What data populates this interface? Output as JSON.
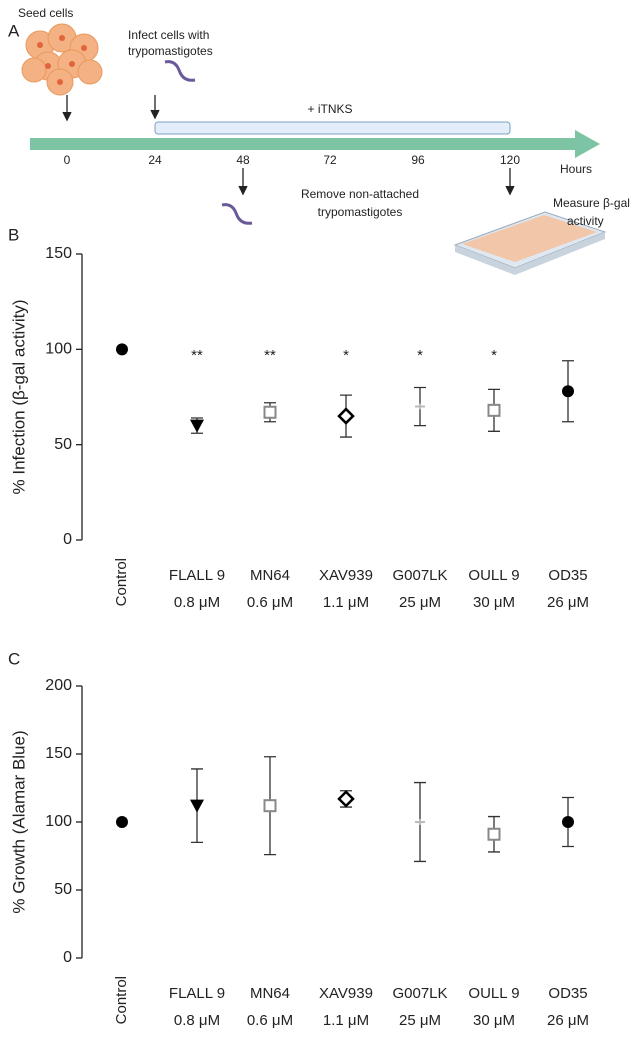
{
  "panel_a": {
    "label": "A",
    "seed_label": "Seed cells",
    "infect_label": [
      "Infect cells with",
      "trypomastigotes"
    ],
    "treatment_label": "+ iTNKS",
    "timeline_ticks": [
      "0",
      "24",
      "48",
      "72",
      "96",
      "120"
    ],
    "timeline_unit": "Hours",
    "remove_label": [
      "Remove non-attached",
      "trypomastigotes"
    ],
    "measure_label": [
      "Measure β-gal",
      "activity"
    ]
  },
  "chart_data": [
    {
      "type": "errorbar",
      "panel_label": "B",
      "y_label": "% Infection (β-gal activity)",
      "categories": [
        "Control",
        "FLALL 9",
        "MN64",
        "XAV939",
        "G007LK",
        "OULL 9",
        "OD35"
      ],
      "doses": [
        null,
        "0.8 μM",
        "0.6 μM",
        "1.1 μM",
        "25 μM",
        "30 μM",
        "26 μM"
      ],
      "values": [
        100,
        60,
        67,
        65,
        70,
        68,
        78
      ],
      "errors": [
        null,
        4,
        5,
        11,
        10,
        11,
        16
      ],
      "annotations": [
        null,
        "**",
        "**",
        "*",
        "*",
        "*",
        null
      ],
      "markers": [
        "circle",
        "triangle-down",
        "square-open",
        "diamond-open",
        "plus",
        "square-open",
        "circle"
      ],
      "colors": [
        "#000000",
        "#000000",
        "#888888",
        "#000000",
        "#bbbbbb",
        "#888888",
        "#000000"
      ],
      "ylim": [
        0,
        150
      ],
      "yticks": [
        0,
        50,
        100,
        150
      ]
    },
    {
      "type": "errorbar",
      "panel_label": "C",
      "y_label": "% Growth (Alamar Blue)",
      "categories": [
        "Control",
        "FLALL 9",
        "MN64",
        "XAV939",
        "G007LK",
        "OULL 9",
        "OD35"
      ],
      "doses": [
        null,
        "0.8 μM",
        "0.6 μM",
        "1.1 μM",
        "25 μM",
        "30 μM",
        "26 μM"
      ],
      "values": [
        100,
        112,
        112,
        117,
        100,
        91,
        100
      ],
      "errors": [
        null,
        27,
        36,
        6,
        29,
        13,
        18
      ],
      "markers": [
        "circle",
        "triangle-down",
        "square-open",
        "diamond-open",
        "plus",
        "square-open",
        "circle"
      ],
      "colors": [
        "#000000",
        "#000000",
        "#888888",
        "#000000",
        "#bbbbbb",
        "#888888",
        "#000000"
      ],
      "ylim": [
        0,
        200
      ],
      "yticks": [
        0,
        50,
        100,
        150,
        200
      ]
    }
  ]
}
